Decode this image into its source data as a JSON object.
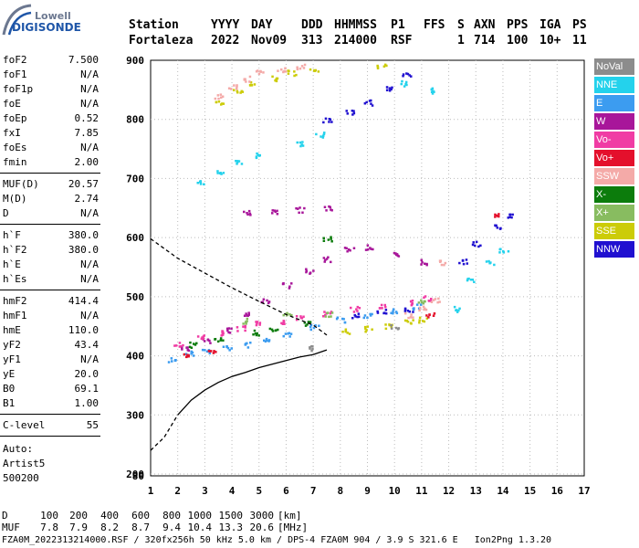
{
  "logo": {
    "company": "Lowell",
    "product": "DIGISONDE"
  },
  "header": {
    "labels": [
      "Station",
      "YYYY",
      "DAY",
      "DDD",
      "HHMMSS",
      "P1",
      "FFS",
      "S",
      "AXN",
      "PPS",
      "IGA",
      "PS"
    ],
    "values": [
      "Fortaleza",
      "2022",
      "Nov09",
      "313",
      "214000",
      "RSF",
      "1",
      "714",
      "100",
      "10+",
      "11"
    ]
  },
  "params": [
    {
      "label": "foF2",
      "value": "7.500"
    },
    {
      "label": "foF1",
      "value": "N/A"
    },
    {
      "label": "foF1p",
      "value": "N/A"
    },
    {
      "label": "foE",
      "value": "N/A"
    },
    {
      "label": "foEp",
      "value": "0.52"
    },
    {
      "label": "fxI",
      "value": "7.85"
    },
    {
      "label": "foEs",
      "value": "N/A"
    },
    {
      "label": "fmin",
      "value": "2.00"
    },
    {
      "label": "MUF(D)",
      "value": "20.57"
    },
    {
      "label": "M(D)",
      "value": "2.74"
    },
    {
      "label": "D",
      "value": "N/A"
    },
    {
      "label": "h`F",
      "value": "380.0"
    },
    {
      "label": "h`F2",
      "value": "380.0"
    },
    {
      "label": "h`E",
      "value": "N/A"
    },
    {
      "label": "h`Es",
      "value": "N/A"
    },
    {
      "label": "hmF2",
      "value": "414.4"
    },
    {
      "label": "hmF1",
      "value": "N/A"
    },
    {
      "label": "hmE",
      "value": "110.0"
    },
    {
      "label": "yF2",
      "value": "43.4"
    },
    {
      "label": "yF1",
      "value": "N/A"
    },
    {
      "label": "yE",
      "value": "20.0"
    },
    {
      "label": "B0",
      "value": "69.1"
    },
    {
      "label": "B1",
      "value": "1.00"
    },
    {
      "label": "C-level",
      "value": "55"
    }
  ],
  "autoscaling": {
    "label": "Auto:",
    "software": "Artist5",
    "version": "500200"
  },
  "legend": [
    {
      "label": "NoVal",
      "color": "#8c8c8c"
    },
    {
      "label": "NNE",
      "color": "#24d2ec"
    },
    {
      "label": "E",
      "color": "#3c9cf0"
    },
    {
      "label": "W",
      "color": "#a8169a"
    },
    {
      "label": "Vo-",
      "color": "#f03ca4"
    },
    {
      "label": "Vo+",
      "color": "#e4102c"
    },
    {
      "label": "SSW",
      "color": "#f4aaa8"
    },
    {
      "label": "X-",
      "color": "#0c7c0c"
    },
    {
      "label": "X+",
      "color": "#88bc60"
    },
    {
      "label": "SSE",
      "color": "#cccc08"
    },
    {
      "label": "NNW",
      "color": "#2010d0"
    }
  ],
  "footer": {
    "d_label": "D",
    "d_values": [
      "100",
      "200",
      "400",
      "600",
      "800",
      "1000",
      "1500",
      "3000"
    ],
    "d_unit": "[km]",
    "muf_label": "MUF",
    "muf_values": [
      "7.8",
      "7.9",
      "8.2",
      "8.7",
      "9.4",
      "10.4",
      "13.3",
      "20.6"
    ],
    "muf_unit": "[MHz]",
    "info": "FZA0M_2022313214000.RSF / 320fx256h 50 kHz 5.0 km / DPS-4 FZA0M 904 / 3.9 S 321.6 E   Ion2Png 1.3.20"
  },
  "chart_data": {
    "type": "scatter",
    "xlim": [
      1,
      17
    ],
    "ylim": [
      80,
      900
    ],
    "xticks": [
      "1",
      "2",
      "3",
      "4",
      "5",
      "6",
      "7",
      "8",
      "9",
      "10",
      "11",
      "12",
      "13",
      "14",
      "15",
      "16",
      "17"
    ],
    "yticks": [
      "80",
      "200",
      "300",
      "400",
      "500",
      "600",
      "700",
      "800",
      "900"
    ],
    "grid": "dotted",
    "legend_position": "right",
    "series": [
      {
        "name": "E",
        "color": "#3c9cf0",
        "points": [
          [
            1.8,
            395
          ],
          [
            2.4,
            405
          ],
          [
            3.0,
            410
          ],
          [
            3.8,
            415
          ],
          [
            4.5,
            420
          ],
          [
            5.2,
            428
          ],
          [
            6.0,
            438
          ],
          [
            7.0,
            450
          ],
          [
            8.0,
            462
          ],
          [
            9.0,
            470
          ],
          [
            10.0,
            478
          ],
          [
            10.8,
            484
          ]
        ]
      },
      {
        "name": "W",
        "color": "#a8169a",
        "points": [
          [
            2.2,
            415
          ],
          [
            3.0,
            428
          ],
          [
            3.8,
            445
          ],
          [
            4.5,
            470
          ],
          [
            5.2,
            495
          ],
          [
            6.0,
            520
          ],
          [
            6.8,
            545
          ],
          [
            7.5,
            565
          ],
          [
            8.3,
            580
          ],
          [
            9.0,
            585
          ],
          [
            10.0,
            575
          ],
          [
            11.0,
            560
          ],
          [
            4.5,
            643
          ],
          [
            5.5,
            645
          ],
          [
            6.5,
            648
          ],
          [
            7.5,
            650
          ]
        ]
      },
      {
        "name": "Vo-",
        "color": "#f03ca4",
        "points": [
          [
            2.0,
            420
          ],
          [
            2.8,
            432
          ],
          [
            3.5,
            440
          ],
          [
            4.3,
            448
          ],
          [
            5.0,
            455
          ],
          [
            5.8,
            460
          ],
          [
            6.5,
            465
          ],
          [
            7.5,
            472
          ],
          [
            8.5,
            480
          ],
          [
            9.5,
            486
          ],
          [
            10.5,
            492
          ],
          [
            11.2,
            498
          ]
        ]
      },
      {
        "name": "NNE",
        "color": "#24d2ec",
        "points": [
          [
            2.8,
            695
          ],
          [
            3.5,
            712
          ],
          [
            4.2,
            728
          ],
          [
            5.0,
            740
          ],
          [
            6.5,
            760
          ],
          [
            7.2,
            775
          ],
          [
            10.3,
            862
          ],
          [
            11.3,
            850
          ],
          [
            12.2,
            480
          ],
          [
            12.8,
            530
          ],
          [
            13.5,
            560
          ],
          [
            14.0,
            580
          ]
        ]
      },
      {
        "name": "NNW",
        "color": "#2010d0",
        "points": [
          [
            7.5,
            800
          ],
          [
            8.3,
            812
          ],
          [
            9.0,
            830
          ],
          [
            9.8,
            855
          ],
          [
            10.4,
            875
          ],
          [
            12.5,
            560
          ],
          [
            13.0,
            590
          ],
          [
            13.8,
            620
          ],
          [
            14.2,
            640
          ],
          [
            8.5,
            470
          ],
          [
            9.5,
            475
          ],
          [
            10.5,
            480
          ]
        ]
      },
      {
        "name": "SSE",
        "color": "#cccc08",
        "points": [
          [
            8.2,
            442
          ],
          [
            9.0,
            447
          ],
          [
            9.8,
            452
          ],
          [
            10.5,
            458
          ],
          [
            11.0,
            462
          ],
          [
            3.5,
            830
          ],
          [
            4.2,
            850
          ],
          [
            4.8,
            860
          ],
          [
            5.5,
            870
          ],
          [
            6.2,
            880
          ],
          [
            7.0,
            885
          ],
          [
            9.5,
            890
          ]
        ]
      },
      {
        "name": "SSW",
        "color": "#f4aaa8",
        "points": [
          [
            3.5,
            840
          ],
          [
            4.0,
            855
          ],
          [
            4.5,
            870
          ],
          [
            5.0,
            880
          ],
          [
            5.8,
            885
          ],
          [
            6.5,
            890
          ],
          [
            10.5,
            470
          ],
          [
            11.0,
            482
          ],
          [
            11.5,
            495
          ],
          [
            11.8,
            560
          ]
        ]
      },
      {
        "name": "X-",
        "color": "#0c7c0c",
        "points": [
          [
            2.5,
            420
          ],
          [
            3.5,
            430
          ],
          [
            4.8,
            440
          ],
          [
            5.5,
            448
          ],
          [
            6.8,
            455
          ],
          [
            7.5,
            600
          ]
        ]
      },
      {
        "name": "Vo+",
        "color": "#e4102c",
        "points": [
          [
            2.2,
            400
          ],
          [
            3.2,
            410
          ],
          [
            11.3,
            470
          ],
          [
            13.8,
            640
          ]
        ]
      },
      {
        "name": "X+",
        "color": "#88bc60",
        "points": [
          [
            4.5,
            460
          ],
          [
            6.0,
            470
          ],
          [
            7.5,
            472
          ],
          [
            11.0,
            495
          ]
        ]
      },
      {
        "name": "NoVal",
        "color": "#8c8c8c",
        "points": [
          [
            6.8,
            415
          ],
          [
            10.0,
            450
          ]
        ]
      }
    ],
    "profile": [
      [
        2.0,
        300
      ],
      [
        2.5,
        325
      ],
      [
        3.0,
        342
      ],
      [
        3.5,
        355
      ],
      [
        4.0,
        365
      ],
      [
        4.5,
        372
      ],
      [
        5.0,
        380
      ],
      [
        5.5,
        386
      ],
      [
        6.0,
        392
      ],
      [
        6.5,
        398
      ],
      [
        7.0,
        402
      ],
      [
        7.5,
        410
      ]
    ],
    "profile_extrapolated": [
      [
        1.0,
        240
      ],
      [
        1.5,
        262
      ],
      [
        2.0,
        300
      ]
    ],
    "topside": [
      [
        1.0,
        598
      ],
      [
        2.0,
        565
      ],
      [
        3.0,
        540
      ],
      [
        4.0,
        515
      ],
      [
        5.0,
        492
      ],
      [
        6.0,
        470
      ],
      [
        7.0,
        452
      ],
      [
        7.5,
        435
      ]
    ]
  }
}
